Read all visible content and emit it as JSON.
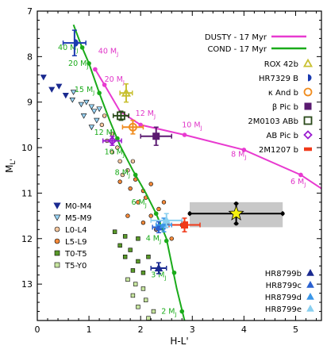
{
  "chart_data": {
    "type": "scatter",
    "xlabel": "H-L'",
    "ylabel": "M_L'",
    "xlim": [
      0,
      5.5
    ],
    "ylim": [
      13.8,
      7.0
    ],
    "y_inverted": true,
    "xticks": [
      "0",
      "1",
      "2",
      "3",
      "4",
      "5"
    ],
    "yticks": [
      "7",
      "8",
      "9",
      "10",
      "11",
      "12",
      "13"
    ],
    "colors": {
      "dusty": "#e83ad0",
      "cond": "#1aab1a",
      "rox": "#c8c030",
      "hr7329": "#1a3ab0",
      "kand": "#f08c1e",
      "betapic": "#5a1a70",
      "twom0103": "#2a4a1a",
      "abpic": "#9a1ad0",
      "twom1207": "#f03a1a",
      "hr8799b": "#1a2a90",
      "hr8799c": "#2a60d0",
      "hr8799d": "#3a96e8",
      "hr8799e": "#8ad0f0",
      "star": "#f5f010",
      "band": "#c8c8c8"
    },
    "models": [
      {
        "name": "DUSTY - 17 Myr",
        "points": [
          [
            1.12,
            8.28
          ],
          [
            1.3,
            8.62
          ],
          [
            1.6,
            9.2
          ],
          [
            2.0,
            9.5
          ],
          [
            2.85,
            9.72
          ],
          [
            4.0,
            10.05
          ],
          [
            5.1,
            10.6
          ],
          [
            5.5,
            10.9
          ]
        ],
        "mass_points": [
          [
            1.12,
            8.28
          ],
          [
            1.3,
            8.62
          ],
          [
            2.0,
            9.5
          ],
          [
            2.85,
            9.72
          ],
          [
            4.0,
            10.05
          ],
          [
            5.1,
            10.6
          ]
        ]
      },
      {
        "name": "COND - 17 Myr",
        "points": [
          [
            0.7,
            7.3
          ],
          [
            0.85,
            7.75
          ],
          [
            1.0,
            8.15
          ],
          [
            1.2,
            8.8
          ],
          [
            1.4,
            9.4
          ],
          [
            1.6,
            9.95
          ],
          [
            1.85,
            10.5
          ],
          [
            2.1,
            11.0
          ],
          [
            2.3,
            11.45
          ],
          [
            2.5,
            12.0
          ],
          [
            2.6,
            12.55
          ],
          [
            2.7,
            13.1
          ],
          [
            2.85,
            13.8
          ]
        ],
        "mass_points": [
          [
            0.87,
            7.8
          ],
          [
            1.0,
            8.15
          ],
          [
            1.2,
            8.8
          ],
          [
            1.55,
            9.8
          ],
          [
            1.9,
            10.6
          ],
          [
            2.3,
            11.45
          ],
          [
            2.5,
            12.05
          ],
          [
            2.65,
            12.75
          ],
          [
            2.8,
            13.6
          ]
        ]
      }
    ],
    "mass_labels": [
      {
        "text": "40 M_J",
        "model": "cond",
        "x": 0.4,
        "y": 7.85
      },
      {
        "text": "20 M_J",
        "model": "cond",
        "x": 0.6,
        "y": 8.2
      },
      {
        "text": "15 M_J",
        "model": "cond",
        "x": 0.72,
        "y": 8.78
      },
      {
        "text": "12 M_J",
        "model": "cond",
        "x": 1.1,
        "y": 9.72
      },
      {
        "text": "10 M_J",
        "model": "cond",
        "x": 1.3,
        "y": 10.15
      },
      {
        "text": "8 M_J",
        "model": "cond",
        "x": 1.5,
        "y": 10.6
      },
      {
        "text": "6 M_J",
        "model": "cond",
        "x": 1.82,
        "y": 11.25
      },
      {
        "text": "4 M_J",
        "model": "cond",
        "x": 2.1,
        "y": 12.05
      },
      {
        "text": "3 M_J",
        "model": "cond",
        "x": 2.2,
        "y": 12.85
      },
      {
        "text": "2 M_J",
        "model": "cond",
        "x": 2.4,
        "y": 13.65
      },
      {
        "text": "40 M_J",
        "model": "dusty",
        "x": 1.18,
        "y": 7.93
      },
      {
        "text": "20 M_J",
        "model": "dusty",
        "x": 1.3,
        "y": 8.55
      },
      {
        "text": "12 M_J",
        "model": "dusty",
        "x": 1.9,
        "y": 9.3
      },
      {
        "text": "10 M_J",
        "model": "dusty",
        "x": 2.8,
        "y": 9.55
      },
      {
        "text": "8 M_J",
        "model": "dusty",
        "x": 3.75,
        "y": 10.2
      },
      {
        "text": "6 M_J",
        "model": "dusty",
        "x": 4.9,
        "y": 10.8
      }
    ],
    "field_dwarfs": {
      "M0-M4": [
        [
          0.12,
          8.45
        ],
        [
          0.28,
          8.72
        ],
        [
          0.42,
          8.65
        ],
        [
          0.55,
          8.85
        ]
      ],
      "M5-M9": [
        [
          0.7,
          8.78
        ],
        [
          0.68,
          8.95
        ],
        [
          0.85,
          9.05
        ],
        [
          0.95,
          9.0
        ],
        [
          1.05,
          9.1
        ],
        [
          0.9,
          9.3
        ],
        [
          1.1,
          9.2
        ],
        [
          1.15,
          9.4
        ],
        [
          1.05,
          9.55
        ],
        [
          1.2,
          9.15
        ]
      ],
      "L0-L4": [
        [
          1.3,
          9.3
        ],
        [
          1.25,
          9.5
        ],
        [
          1.45,
          9.7
        ],
        [
          1.35,
          9.85
        ],
        [
          1.55,
          10.0
        ],
        [
          1.45,
          10.1
        ],
        [
          1.6,
          10.3
        ],
        [
          1.65,
          10.6
        ],
        [
          1.75,
          10.5
        ],
        [
          1.85,
          10.3
        ]
      ],
      "L5-L9": [
        [
          1.6,
          10.75
        ],
        [
          1.8,
          10.9
        ],
        [
          1.9,
          10.7
        ],
        [
          2.05,
          10.95
        ],
        [
          2.2,
          10.8
        ],
        [
          1.95,
          11.2
        ],
        [
          2.1,
          11.1
        ],
        [
          2.35,
          11.35
        ],
        [
          2.45,
          11.2
        ],
        [
          2.2,
          11.5
        ],
        [
          2.5,
          11.65
        ],
        [
          2.8,
          11.7
        ],
        [
          2.3,
          11.8
        ],
        [
          2.05,
          11.65
        ],
        [
          2.6,
          12.0
        ],
        [
          1.75,
          11.5
        ]
      ],
      "T0-T5": [
        [
          1.5,
          11.85
        ],
        [
          1.7,
          11.95
        ],
        [
          1.6,
          12.15
        ],
        [
          1.8,
          12.25
        ],
        [
          1.95,
          12.0
        ],
        [
          1.7,
          12.4
        ],
        [
          1.95,
          12.5
        ],
        [
          2.15,
          12.4
        ],
        [
          1.85,
          12.7
        ],
        [
          2.05,
          12.75
        ]
      ],
      "T5-Y0": [
        [
          1.75,
          12.9
        ],
        [
          1.9,
          13.0
        ],
        [
          2.05,
          13.1
        ],
        [
          1.85,
          13.25
        ],
        [
          2.1,
          13.35
        ],
        [
          1.95,
          13.5
        ],
        [
          2.25,
          13.6
        ],
        [
          2.15,
          13.75
        ]
      ]
    },
    "companions": [
      {
        "name": "ROX 42b",
        "marker": "triangle-open",
        "color": "rox",
        "x": 1.72,
        "y": 8.8,
        "xerr": 0.12,
        "yerr": 0.2
      },
      {
        "name": "HR7329 B",
        "marker": "half-circle",
        "color": "hr7329",
        "x": 0.72,
        "y": 7.7,
        "xerr": 0.22,
        "yerr": 0.28
      },
      {
        "name": "κ And b",
        "marker": "circle-open",
        "color": "kand",
        "x": 1.85,
        "y": 9.55,
        "xerr": 0.2,
        "yerr": 0.15
      },
      {
        "name": "β Pic b",
        "marker": "square",
        "color": "betapic",
        "x": 2.3,
        "y": 9.75,
        "xerr": 0.3,
        "yerr": 0.2
      },
      {
        "name": "2M0103 ABb",
        "marker": "square-open",
        "color": "twom0103",
        "x": 1.62,
        "y": 9.3,
        "xerr": 0.15,
        "yerr": 0.1
      },
      {
        "name": "AB Pic b",
        "marker": "diamond-open",
        "color": "abpic",
        "x": 1.45,
        "y": 9.85,
        "xerr": 0.18,
        "yerr": 0.1
      },
      {
        "name": "2M1207 b",
        "marker": "bar",
        "color": "twom1207",
        "x": 2.85,
        "y": 11.7,
        "xerr": 0.3,
        "yerr": 0.15
      },
      {
        "name": "HR8799b",
        "marker": "triangle",
        "color": "hr8799b",
        "x": 2.35,
        "y": 12.65,
        "xerr": 0.15,
        "yerr": 0.12
      },
      {
        "name": "HR8799c",
        "marker": "triangle",
        "color": "hr8799c",
        "x": 2.35,
        "y": 11.75,
        "xerr": 0.12,
        "yerr": 0.12
      },
      {
        "name": "HR8799d",
        "marker": "triangle",
        "color": "hr8799d",
        "x": 2.45,
        "y": 11.7,
        "xerr": 0.15,
        "yerr": 0.15
      },
      {
        "name": "HR8799e",
        "marker": "triangle",
        "color": "hr8799e",
        "x": 2.5,
        "y": 11.6,
        "xerr": 0.3,
        "yerr": 0.15
      }
    ],
    "target": {
      "x": 3.85,
      "y": 11.45,
      "xerr": 0.9,
      "yerr": 0.22,
      "band_y": [
        11.2,
        11.75
      ],
      "band_x": [
        2.95,
        4.75
      ]
    },
    "legend": {
      "placement": "top-right",
      "models": [
        "DUSTY - 17 Myr",
        "COND - 17 Myr"
      ],
      "companions": [
        "ROX 42b",
        "HR7329 B",
        "κ And b",
        "β Pic b",
        "2M0103 ABb",
        "AB Pic b",
        "2M1207 b"
      ],
      "field": [
        "M0-M4",
        "M5-M9",
        "L0-L4",
        "L5-L9",
        "T0-T5",
        "T5-Y0"
      ],
      "hr8799": [
        "HR8799b",
        "HR8799c",
        "HR8799d",
        "HR8799e"
      ]
    }
  }
}
